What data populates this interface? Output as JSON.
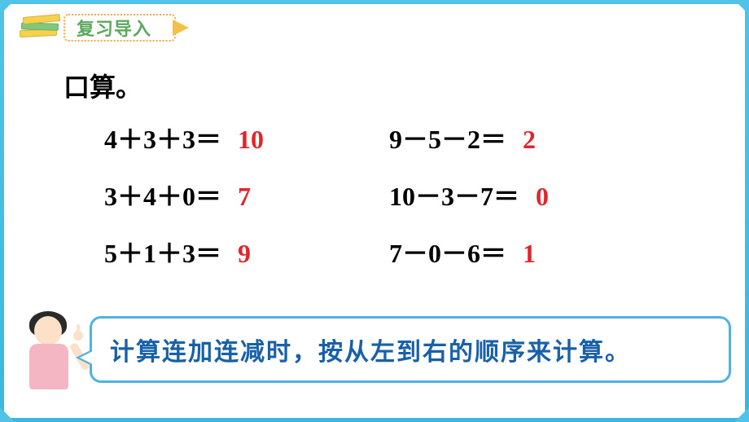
{
  "header": {
    "banner_text": "复习导入"
  },
  "content": {
    "title": "口算。",
    "problems_left": [
      {
        "expr": "4＋3＋3＝",
        "answer": "10"
      },
      {
        "expr": "3＋4＋0＝",
        "answer": "7"
      },
      {
        "expr": "5＋1＋3＝",
        "answer": "9"
      }
    ],
    "problems_right": [
      {
        "expr": "9－5－2＝",
        "answer": "2"
      },
      {
        "expr": "10－3－7＝",
        "answer": "0"
      },
      {
        "expr": "7－0－6＝",
        "answer": "1"
      }
    ],
    "note": "计算连加连减时，按从左到右的顺序来计算。"
  },
  "styles": {
    "frame_color": "#4fc3e8",
    "banner_text_color": "#5ba85e",
    "banner_border_color": "#f4a742",
    "answer_color": "#e0262d",
    "note_text_color": "#1860a8",
    "note_border_color": "#4fb3e0",
    "title_fontsize": 32,
    "problem_fontsize": 32,
    "note_fontsize": 30
  }
}
